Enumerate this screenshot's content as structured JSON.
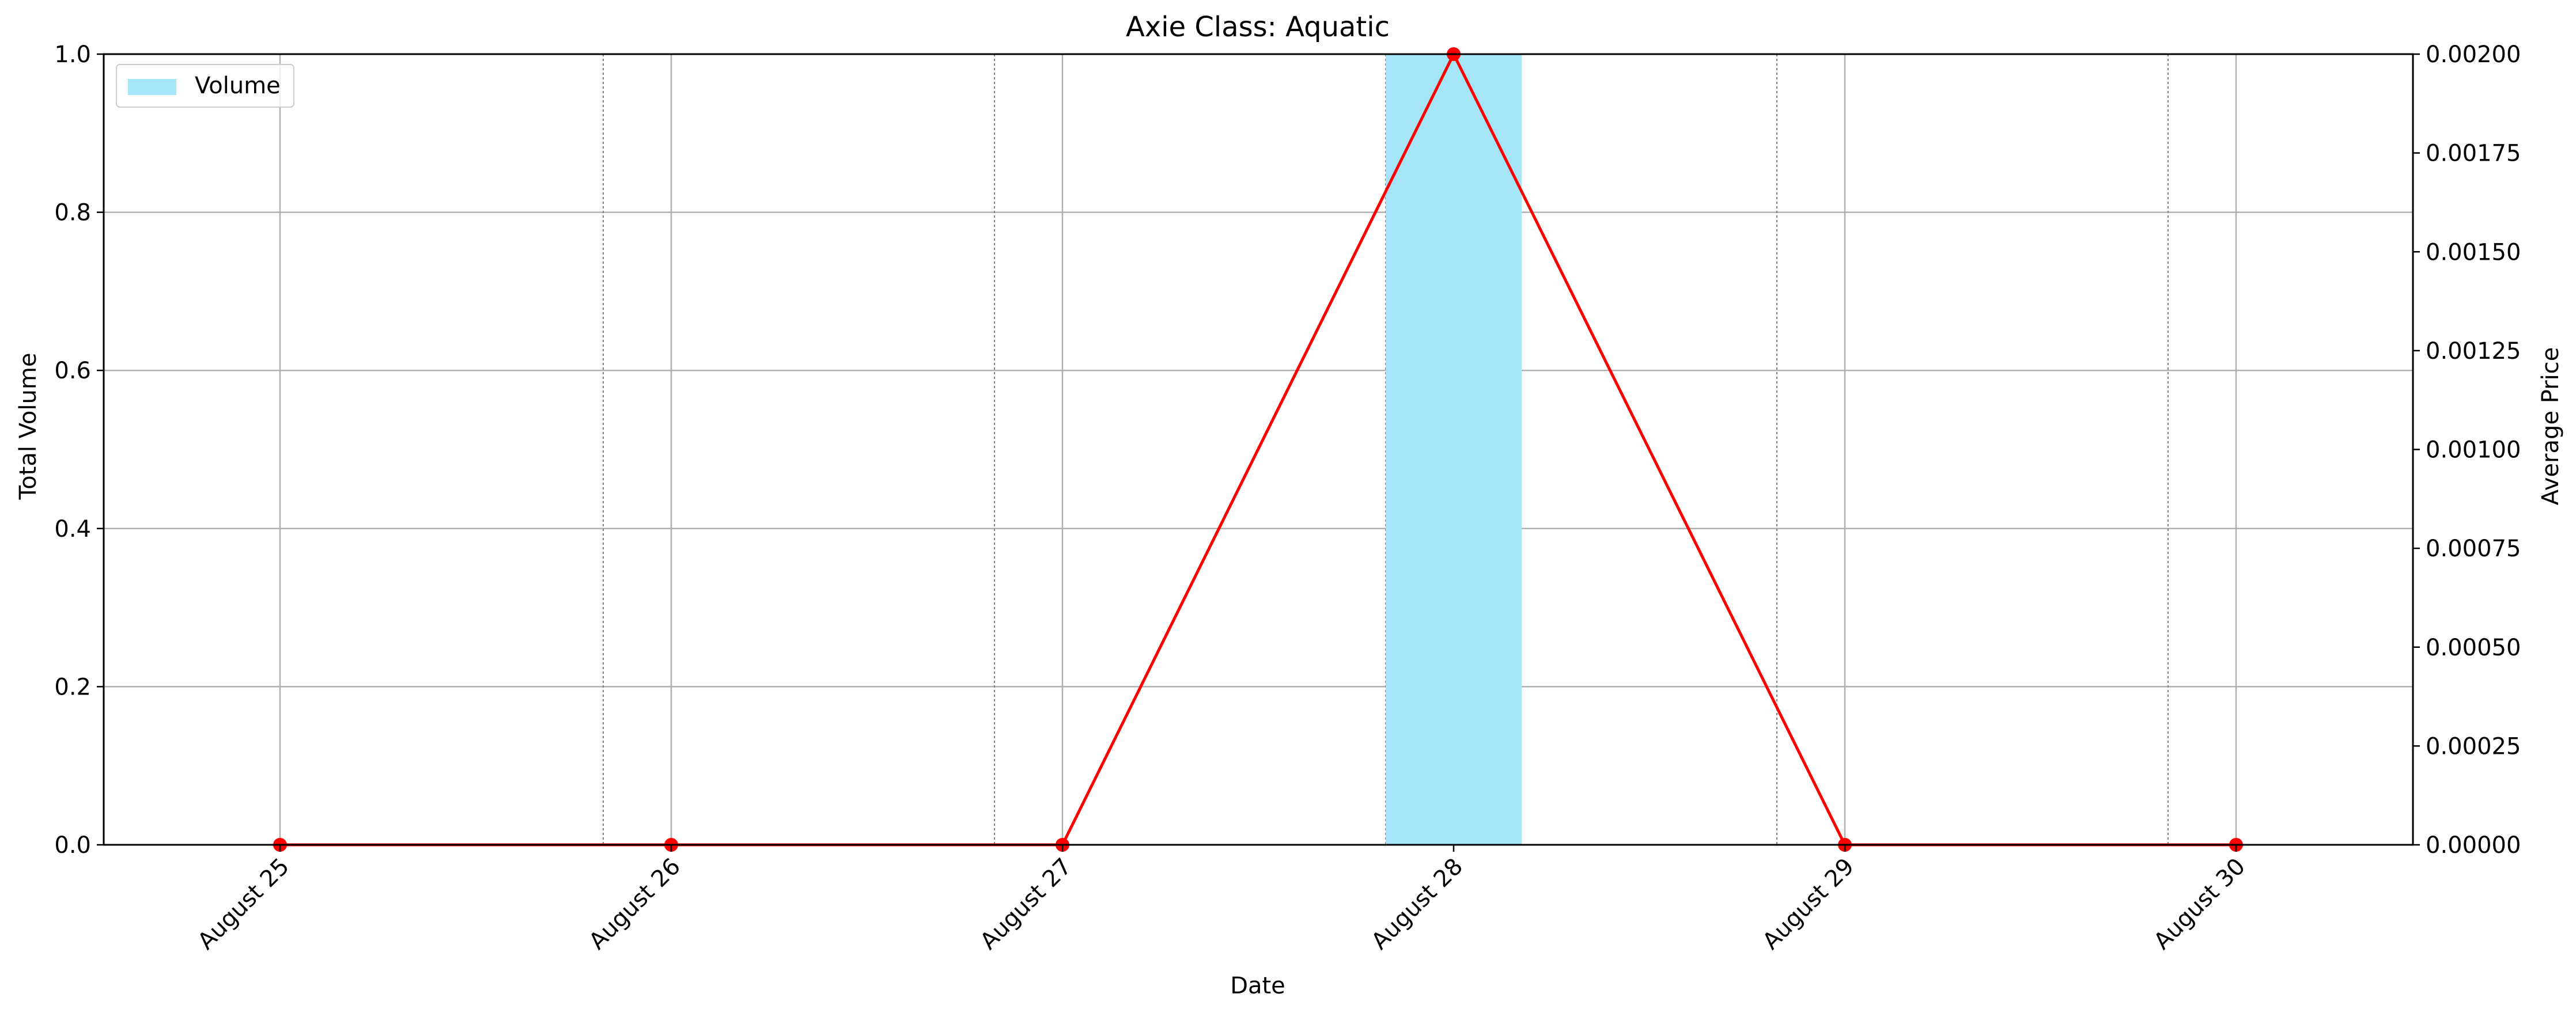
{
  "chart_data": {
    "type": "bar",
    "title": "Axie Class: Aquatic",
    "xlabel": "Date",
    "ylabel": "Total Volume",
    "ylabel_right": "Average Price",
    "categories": [
      "August 25",
      "August 26",
      "August 27",
      "August 28",
      "August 29",
      "August 30"
    ],
    "series": [
      {
        "name": "Volume",
        "kind": "bar",
        "axis": "left",
        "values": [
          0,
          0,
          0,
          1,
          0,
          0
        ],
        "color": "#87ceeb"
      },
      {
        "kind": "line",
        "axis": "right",
        "values": [
          0,
          0,
          0,
          0.002,
          0,
          0
        ],
        "color": "#ff0000",
        "marker": "circle"
      }
    ],
    "ylim": [
      0,
      1.0
    ],
    "yticks": [
      "0.0",
      "0.2",
      "0.4",
      "0.6",
      "0.8",
      "1.0"
    ],
    "ylim_right": [
      0,
      0.002
    ],
    "yticks_right": [
      "0.00000",
      "0.00025",
      "0.00050",
      "0.00075",
      "0.00100",
      "0.00125",
      "0.00150",
      "0.00175",
      "0.00200"
    ],
    "grid": true,
    "legend": {
      "position": "top-left",
      "entries": [
        "Volume"
      ]
    }
  }
}
